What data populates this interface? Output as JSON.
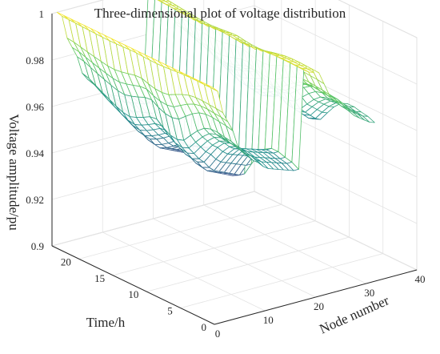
{
  "chart_data": {
    "type": "surface-mesh",
    "title": "Three-dimensional plot of voltage distribution",
    "xlabel": "Node number",
    "ylabel": "Time/h",
    "zlabel": "Voltage amplitude/pu",
    "xlim": [
      0,
      40
    ],
    "ylim": [
      0,
      24
    ],
    "zlim": [
      0.9,
      1.0
    ],
    "x_ticks": [
      "0",
      "10",
      "20",
      "30",
      "40"
    ],
    "y_ticks": [
      "0",
      "5",
      "10",
      "15",
      "20"
    ],
    "z_ticks": [
      "0.9",
      "0.92",
      "0.94",
      "0.96",
      "0.98",
      "1"
    ],
    "grid": true,
    "colormap": [
      "#440154",
      "#3b528b",
      "#21918c",
      "#5ec962",
      "#fde725"
    ],
    "nodes": [
      1,
      2,
      3,
      4,
      5,
      6,
      7,
      8,
      9,
      10,
      11,
      12,
      13,
      14,
      15,
      16,
      17,
      18,
      19,
      20,
      21,
      22,
      23,
      24,
      25,
      26,
      27,
      28,
      29,
      30,
      31,
      32,
      33
    ],
    "hours": [
      1,
      2,
      3,
      4,
      5,
      6,
      7,
      8,
      9,
      10,
      11,
      12,
      13,
      14,
      15,
      16,
      17,
      18,
      19,
      20,
      21,
      22,
      23,
      24
    ],
    "node_profile": [
      1.0,
      0.997,
      0.984,
      0.978,
      0.972,
      0.962,
      0.958,
      0.955,
      0.952,
      0.95,
      0.947,
      0.945,
      0.944,
      0.943,
      0.942,
      0.941,
      0.94,
      0.94,
      0.996,
      0.994,
      0.993,
      0.992,
      0.985,
      0.978,
      0.974,
      0.972,
      0.97,
      0.966,
      0.962,
      0.96,
      0.958,
      0.956,
      0.955
    ],
    "hour_load": [
      0.55,
      0.5,
      0.48,
      0.45,
      0.45,
      0.5,
      0.62,
      0.78,
      0.95,
      1.0,
      0.98,
      0.9,
      0.78,
      0.8,
      0.88,
      0.95,
      1.0,
      0.98,
      0.92,
      0.85,
      0.78,
      0.7,
      0.62,
      0.58
    ]
  }
}
